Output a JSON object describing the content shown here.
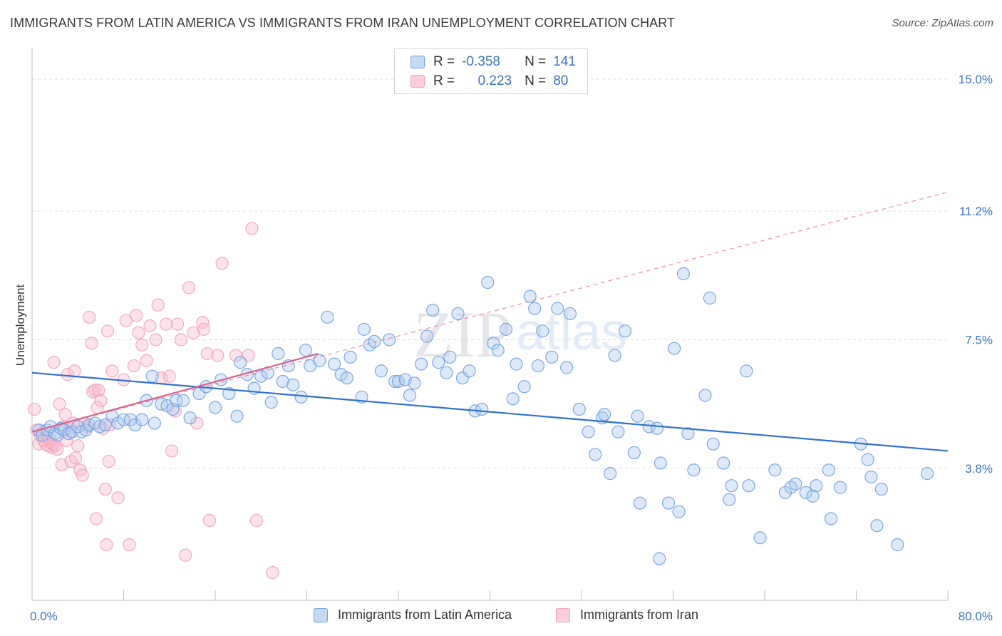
{
  "header": {
    "title": "IMMIGRANTS FROM LATIN AMERICA VS IMMIGRANTS FROM IRAN UNEMPLOYMENT CORRELATION CHART",
    "source": "Source: ZipAtlas.com"
  },
  "legend": {
    "rows": [
      {
        "r_label": "R =",
        "r_value": "-0.358",
        "n_label": "N =",
        "n_value": "141"
      },
      {
        "r_label": "R =",
        "r_value": "0.223",
        "n_label": "N =",
        "n_value": "80"
      }
    ]
  },
  "watermark": {
    "zip": "ZIP",
    "atlas": "atlas"
  },
  "chart_data": {
    "type": "scatter",
    "title": "IMMIGRANTS FROM LATIN AMERICA VS IMMIGRANTS FROM IRAN UNEMPLOYMENT CORRELATION CHART",
    "xlabel": "",
    "ylabel": "Unemployment",
    "xlim": [
      0,
      80
    ],
    "ylim": [
      0,
      15.8
    ],
    "x_tick_labels": [
      "0.0%",
      "80.0%"
    ],
    "y_ticks": [
      3.8,
      7.5,
      11.2,
      15.0
    ],
    "y_tick_labels": [
      "3.8%",
      "7.5%",
      "11.2%",
      "15.0%"
    ],
    "grid": true,
    "colors": {
      "latin": "#6fa1e0",
      "latin_line": "#2f72d0",
      "iran": "#f2a1bd",
      "iran_line": "#e0608d"
    },
    "series": [
      {
        "name": "Immigrants from Latin America",
        "trend": {
          "x": [
            0,
            80
          ],
          "y": [
            6.55,
            4.3
          ]
        },
        "points": [
          [
            0.6,
            4.9
          ],
          [
            0.9,
            4.75
          ],
          [
            1.3,
            4.9
          ],
          [
            1.6,
            5.0
          ],
          [
            2.0,
            4.8
          ],
          [
            2.2,
            4.75
          ],
          [
            2.5,
            4.95
          ],
          [
            2.8,
            4.9
          ],
          [
            3.2,
            4.8
          ],
          [
            3.5,
            4.85
          ],
          [
            4.0,
            5.0
          ],
          [
            4.3,
            4.85
          ],
          [
            4.7,
            4.9
          ],
          [
            5.0,
            5.05
          ],
          [
            5.5,
            5.1
          ],
          [
            5.9,
            5.0
          ],
          [
            6.4,
            5.05
          ],
          [
            7.0,
            5.3
          ],
          [
            7.5,
            5.1
          ],
          [
            8.0,
            5.2
          ],
          [
            8.6,
            5.2
          ],
          [
            9.0,
            5.05
          ],
          [
            9.6,
            5.2
          ],
          [
            10.0,
            5.75
          ],
          [
            10.5,
            6.45
          ],
          [
            10.7,
            5.1
          ],
          [
            11.3,
            5.65
          ],
          [
            11.8,
            5.6
          ],
          [
            12.3,
            5.5
          ],
          [
            12.6,
            5.75
          ],
          [
            13.2,
            5.75
          ],
          [
            13.8,
            5.25
          ],
          [
            14.6,
            5.95
          ],
          [
            15.2,
            6.15
          ],
          [
            16.0,
            5.55
          ],
          [
            16.5,
            6.35
          ],
          [
            17.2,
            5.95
          ],
          [
            17.9,
            5.3
          ],
          [
            18.2,
            6.85
          ],
          [
            18.8,
            6.5
          ],
          [
            19.4,
            6.1
          ],
          [
            20.0,
            6.45
          ],
          [
            20.6,
            6.55
          ],
          [
            20.9,
            5.7
          ],
          [
            21.5,
            7.1
          ],
          [
            21.9,
            6.3
          ],
          [
            22.4,
            6.75
          ],
          [
            22.8,
            6.2
          ],
          [
            23.5,
            5.85
          ],
          [
            23.9,
            7.2
          ],
          [
            24.3,
            6.75
          ],
          [
            25.1,
            6.9
          ],
          [
            25.8,
            8.15
          ],
          [
            26.4,
            6.8
          ],
          [
            27.0,
            6.5
          ],
          [
            27.5,
            6.4
          ],
          [
            27.8,
            7.0
          ],
          [
            28.8,
            5.85
          ],
          [
            29.0,
            7.8
          ],
          [
            29.5,
            7.35
          ],
          [
            29.9,
            7.45
          ],
          [
            30.5,
            6.6
          ],
          [
            31.2,
            7.5
          ],
          [
            31.7,
            6.3
          ],
          [
            32.0,
            6.3
          ],
          [
            32.6,
            6.35
          ],
          [
            33.0,
            5.9
          ],
          [
            33.4,
            6.25
          ],
          [
            34.0,
            6.8
          ],
          [
            34.5,
            7.6
          ],
          [
            35.0,
            8.35
          ],
          [
            35.5,
            6.85
          ],
          [
            36.2,
            6.55
          ],
          [
            36.5,
            7.0
          ],
          [
            37.2,
            8.25
          ],
          [
            37.6,
            6.4
          ],
          [
            38.2,
            6.6
          ],
          [
            38.7,
            5.45
          ],
          [
            39.3,
            5.5
          ],
          [
            39.8,
            9.15
          ],
          [
            40.3,
            7.4
          ],
          [
            40.7,
            7.2
          ],
          [
            41.4,
            7.8
          ],
          [
            42.0,
            5.8
          ],
          [
            42.3,
            6.8
          ],
          [
            43.0,
            6.15
          ],
          [
            43.5,
            8.75
          ],
          [
            43.9,
            8.4
          ],
          [
            44.2,
            6.75
          ],
          [
            44.6,
            7.75
          ],
          [
            45.4,
            7.0
          ],
          [
            45.9,
            8.4
          ],
          [
            46.7,
            6.7
          ],
          [
            47.0,
            8.25
          ],
          [
            47.8,
            5.5
          ],
          [
            48.6,
            4.85
          ],
          [
            49.2,
            4.2
          ],
          [
            49.8,
            5.25
          ],
          [
            50.0,
            5.35
          ],
          [
            50.5,
            3.65
          ],
          [
            50.9,
            7.05
          ],
          [
            51.2,
            4.85
          ],
          [
            51.8,
            7.75
          ],
          [
            52.6,
            4.25
          ],
          [
            52.9,
            5.3
          ],
          [
            53.1,
            2.8
          ],
          [
            53.9,
            5.0
          ],
          [
            54.6,
            4.95
          ],
          [
            54.8,
            1.2
          ],
          [
            54.9,
            3.95
          ],
          [
            55.6,
            2.8
          ],
          [
            56.1,
            7.25
          ],
          [
            56.5,
            2.55
          ],
          [
            56.9,
            9.4
          ],
          [
            57.3,
            4.8
          ],
          [
            57.8,
            3.75
          ],
          [
            58.8,
            5.9
          ],
          [
            59.2,
            8.7
          ],
          [
            59.5,
            4.5
          ],
          [
            60.4,
            3.95
          ],
          [
            60.9,
            2.9
          ],
          [
            61.1,
            3.3
          ],
          [
            62.4,
            6.6
          ],
          [
            62.6,
            3.3
          ],
          [
            63.6,
            1.8
          ],
          [
            64.9,
            3.75
          ],
          [
            65.8,
            3.1
          ],
          [
            66.3,
            3.25
          ],
          [
            66.7,
            3.35
          ],
          [
            67.6,
            3.1
          ],
          [
            68.2,
            3.0
          ],
          [
            68.5,
            3.3
          ],
          [
            69.6,
            3.75
          ],
          [
            69.8,
            2.35
          ],
          [
            70.6,
            3.25
          ],
          [
            72.4,
            4.5
          ],
          [
            73.0,
            4.05
          ],
          [
            73.3,
            3.55
          ],
          [
            73.8,
            2.15
          ],
          [
            74.2,
            3.2
          ],
          [
            75.6,
            1.6
          ],
          [
            78.2,
            3.65
          ]
        ]
      },
      {
        "name": "Immigrants from Iran",
        "trend": {
          "x": [
            0,
            25
          ],
          "y": [
            4.85,
            7.1
          ]
        },
        "trend_extended": {
          "x": [
            0,
            80
          ],
          "y": [
            4.85,
            11.75
          ]
        },
        "points": [
          [
            0.2,
            5.5
          ],
          [
            0.4,
            4.9
          ],
          [
            0.6,
            4.5
          ],
          [
            0.7,
            4.75
          ],
          [
            0.9,
            4.85
          ],
          [
            1.0,
            4.6
          ],
          [
            1.2,
            4.5
          ],
          [
            1.4,
            4.45
          ],
          [
            1.5,
            4.65
          ],
          [
            1.7,
            4.4
          ],
          [
            1.8,
            4.5
          ],
          [
            1.9,
            6.85
          ],
          [
            2.0,
            4.45
          ],
          [
            2.2,
            4.35
          ],
          [
            2.4,
            5.65
          ],
          [
            2.6,
            3.9
          ],
          [
            2.7,
            5.0
          ],
          [
            2.9,
            5.35
          ],
          [
            3.0,
            4.6
          ],
          [
            3.1,
            6.5
          ],
          [
            3.3,
            4.95
          ],
          [
            3.4,
            4.0
          ],
          [
            3.6,
            5.1
          ],
          [
            3.7,
            6.6
          ],
          [
            3.8,
            4.1
          ],
          [
            4.0,
            4.45
          ],
          [
            4.2,
            3.75
          ],
          [
            4.4,
            3.6
          ],
          [
            4.6,
            5.1
          ],
          [
            4.8,
            5.0
          ],
          [
            5.0,
            8.15
          ],
          [
            5.2,
            7.4
          ],
          [
            5.3,
            6.0
          ],
          [
            5.5,
            6.05
          ],
          [
            5.6,
            2.35
          ],
          [
            5.7,
            5.55
          ],
          [
            5.8,
            6.05
          ],
          [
            6.0,
            5.75
          ],
          [
            6.2,
            4.95
          ],
          [
            6.4,
            3.2
          ],
          [
            6.5,
            1.6
          ],
          [
            6.6,
            7.75
          ],
          [
            6.7,
            4.0
          ],
          [
            6.8,
            5.05
          ],
          [
            7.0,
            6.6
          ],
          [
            7.5,
            2.95
          ],
          [
            8.0,
            6.35
          ],
          [
            8.2,
            8.05
          ],
          [
            8.5,
            1.6
          ],
          [
            8.9,
            6.75
          ],
          [
            9.1,
            8.2
          ],
          [
            9.3,
            7.7
          ],
          [
            9.6,
            7.35
          ],
          [
            10.0,
            6.9
          ],
          [
            10.3,
            7.9
          ],
          [
            10.8,
            7.5
          ],
          [
            11.0,
            8.5
          ],
          [
            11.3,
            6.4
          ],
          [
            11.7,
            7.95
          ],
          [
            12.0,
            6.45
          ],
          [
            12.2,
            4.3
          ],
          [
            12.5,
            5.45
          ],
          [
            12.7,
            7.95
          ],
          [
            13.0,
            7.5
          ],
          [
            13.4,
            1.3
          ],
          [
            13.7,
            9.0
          ],
          [
            14.1,
            7.7
          ],
          [
            14.4,
            5.1
          ],
          [
            14.9,
            8.0
          ],
          [
            15.0,
            7.8
          ],
          [
            15.3,
            7.1
          ],
          [
            15.5,
            2.3
          ],
          [
            16.2,
            7.05
          ],
          [
            16.6,
            9.7
          ],
          [
            17.8,
            7.05
          ],
          [
            18.9,
            7.05
          ],
          [
            19.2,
            10.7
          ],
          [
            19.6,
            2.3
          ],
          [
            21.0,
            0.8
          ]
        ]
      }
    ]
  }
}
